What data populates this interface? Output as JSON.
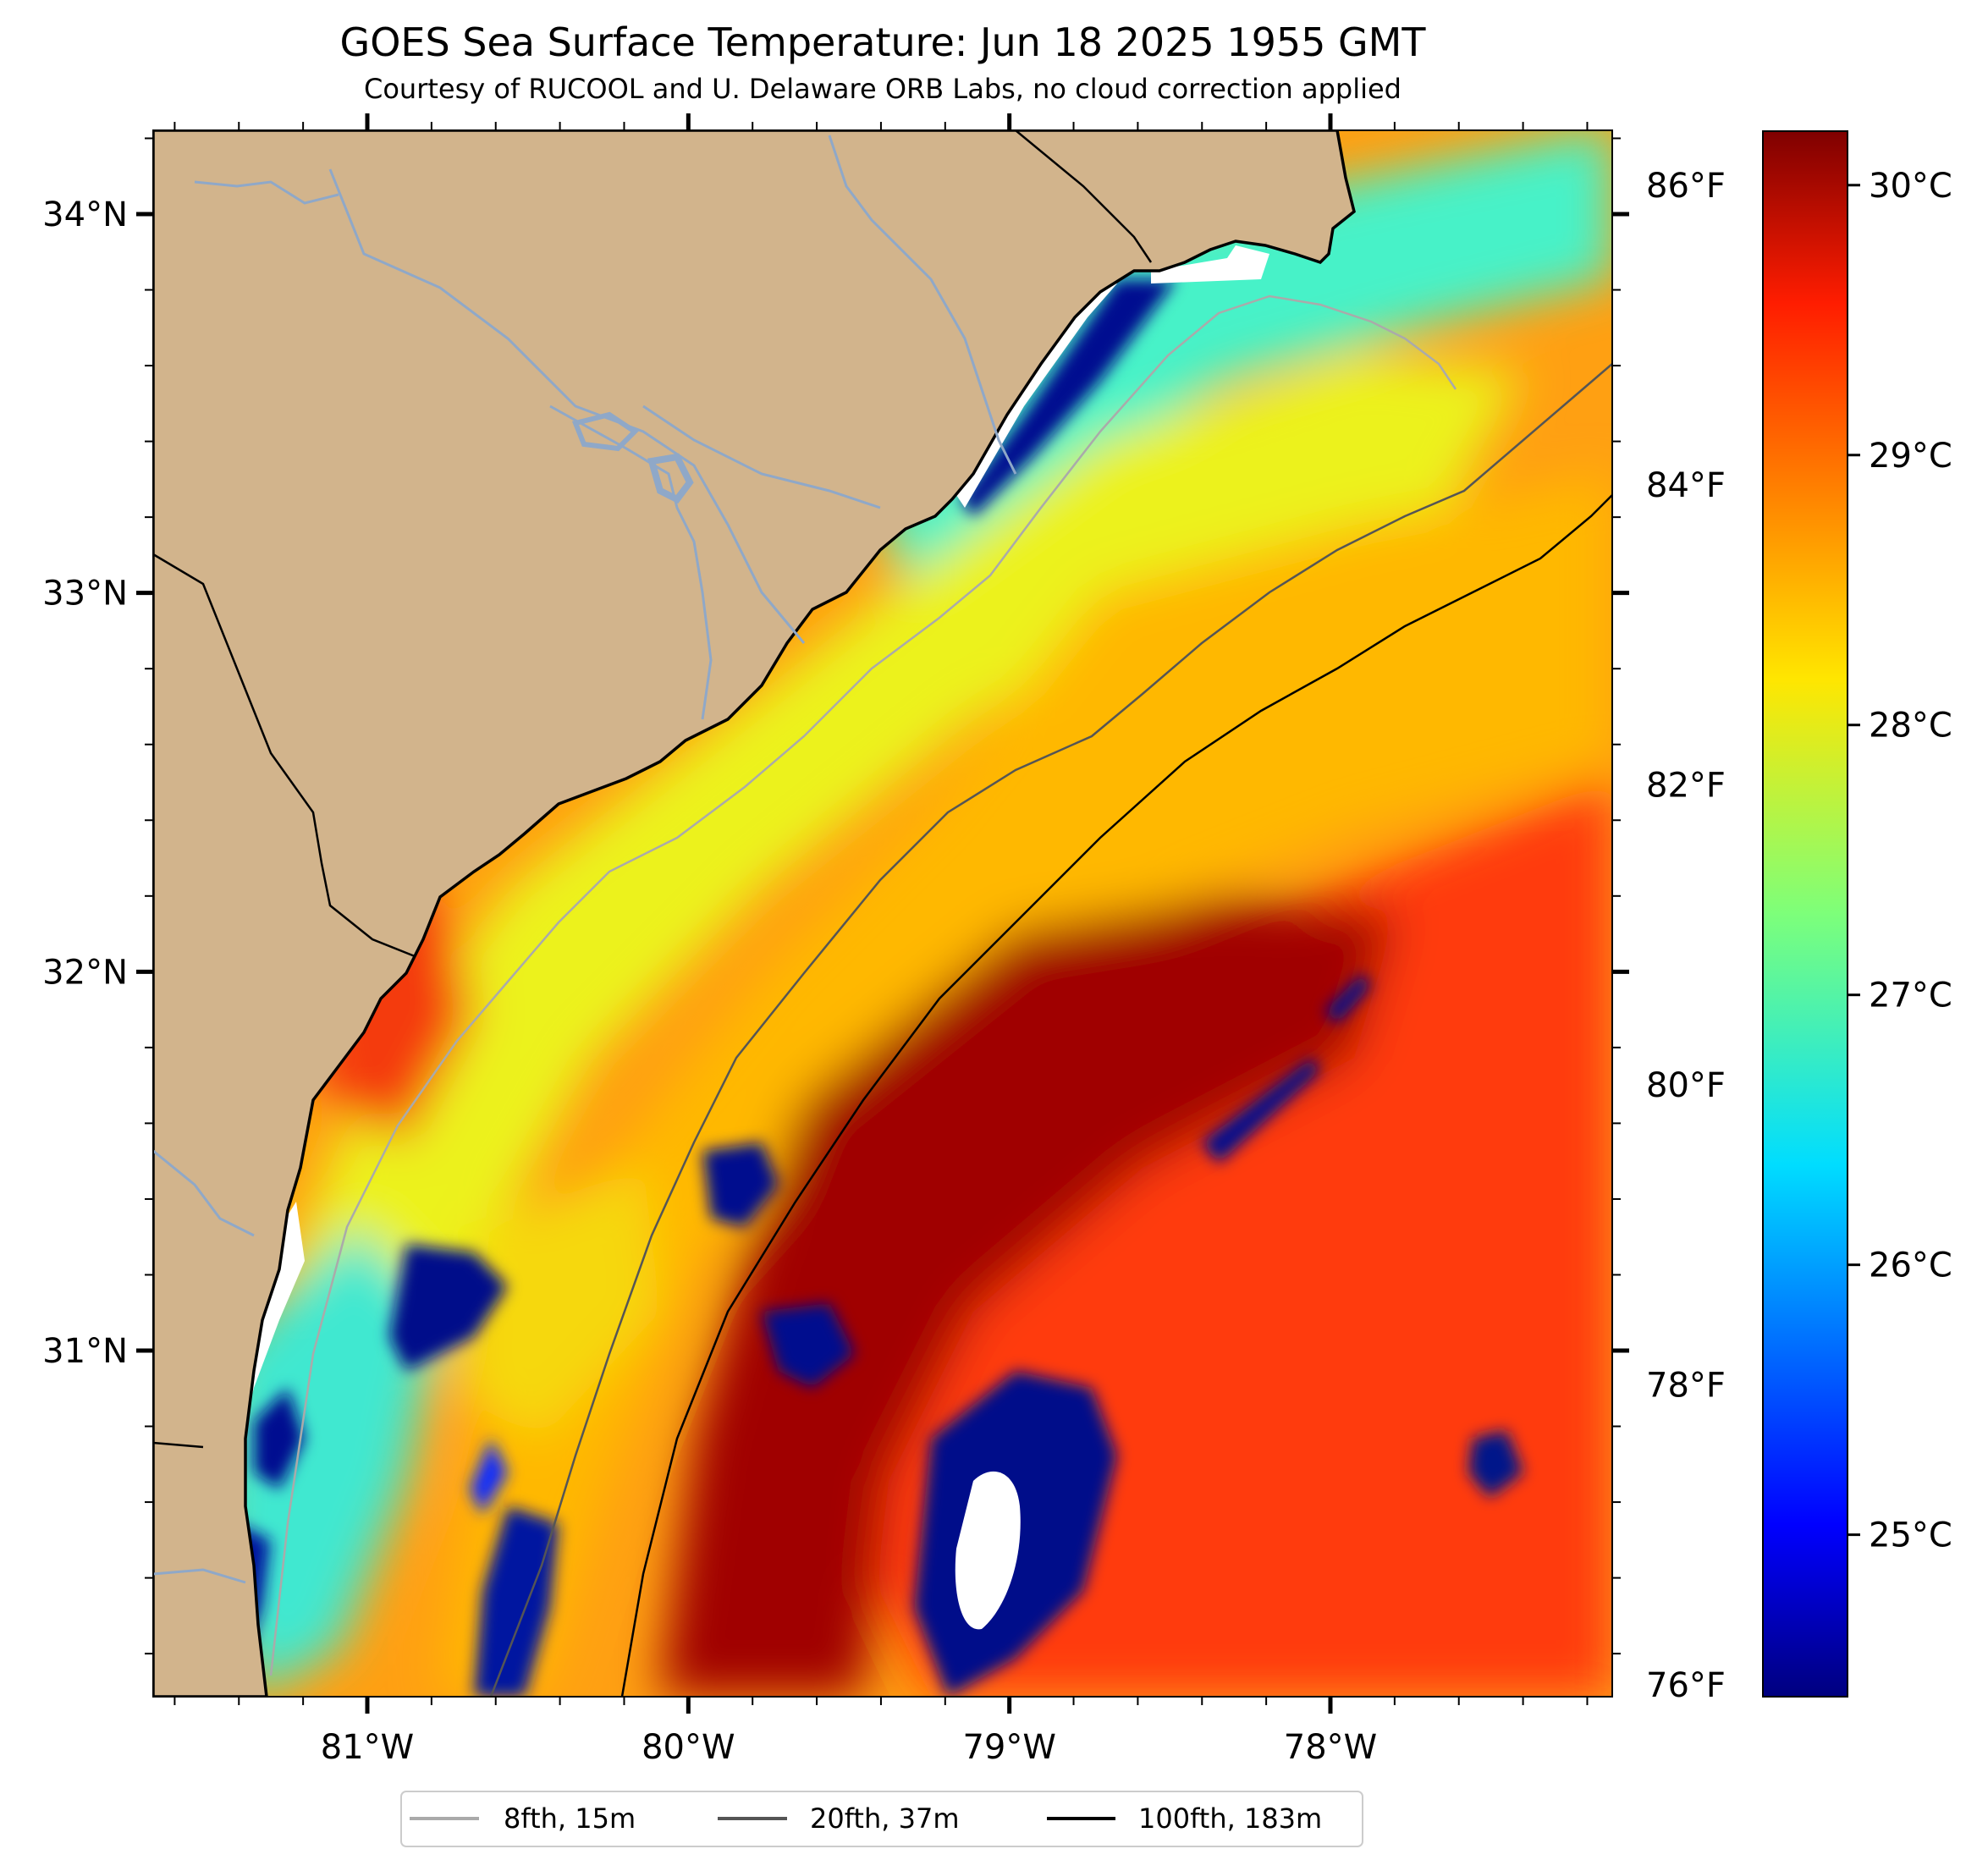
{
  "title": "GOES Sea Surface Temperature: Jun 18 2025 1955 GMT",
  "subtitle": "Courtesy of RUCOOL and U. Delaware ORB Labs, no cloud correction applied",
  "map": {
    "lat_ticks": [
      {
        "value": 34,
        "label": "34°N"
      },
      {
        "value": 33,
        "label": "33°N"
      },
      {
        "value": 32,
        "label": "32°N"
      },
      {
        "value": 31,
        "label": "31°N"
      }
    ],
    "lon_ticks": [
      {
        "value": -81,
        "label": "81°W"
      },
      {
        "value": -80,
        "label": "80°W"
      },
      {
        "value": -79,
        "label": "79°W"
      },
      {
        "value": -78,
        "label": "78°W"
      }
    ],
    "land_color": "#d2b48c",
    "coast_color": "#000000",
    "river_color": "#8fa8c8"
  },
  "colorbar": {
    "colormap": "jet",
    "range_c": [
      24.4,
      30.2
    ],
    "celsius_ticks": [
      {
        "value": 30,
        "label": "30°C"
      },
      {
        "value": 29,
        "label": "29°C"
      },
      {
        "value": 28,
        "label": "28°C"
      },
      {
        "value": 27,
        "label": "27°C"
      },
      {
        "value": 26,
        "label": "26°C"
      },
      {
        "value": 25,
        "label": "25°C"
      }
    ],
    "fahrenheit_ticks": [
      {
        "value": 86,
        "label": "86°F"
      },
      {
        "value": 84,
        "label": "84°F"
      },
      {
        "value": 82,
        "label": "82°F"
      },
      {
        "value": 80,
        "label": "80°F"
      },
      {
        "value": 78,
        "label": "78°F"
      },
      {
        "value": 76,
        "label": "76°F"
      }
    ]
  },
  "legend": {
    "items": [
      {
        "label": "8fth, 15m",
        "color": "#aaaaaa"
      },
      {
        "label": "20fth, 37m",
        "color": "#555555"
      },
      {
        "label": "100fth, 183m",
        "color": "#000000"
      }
    ]
  }
}
